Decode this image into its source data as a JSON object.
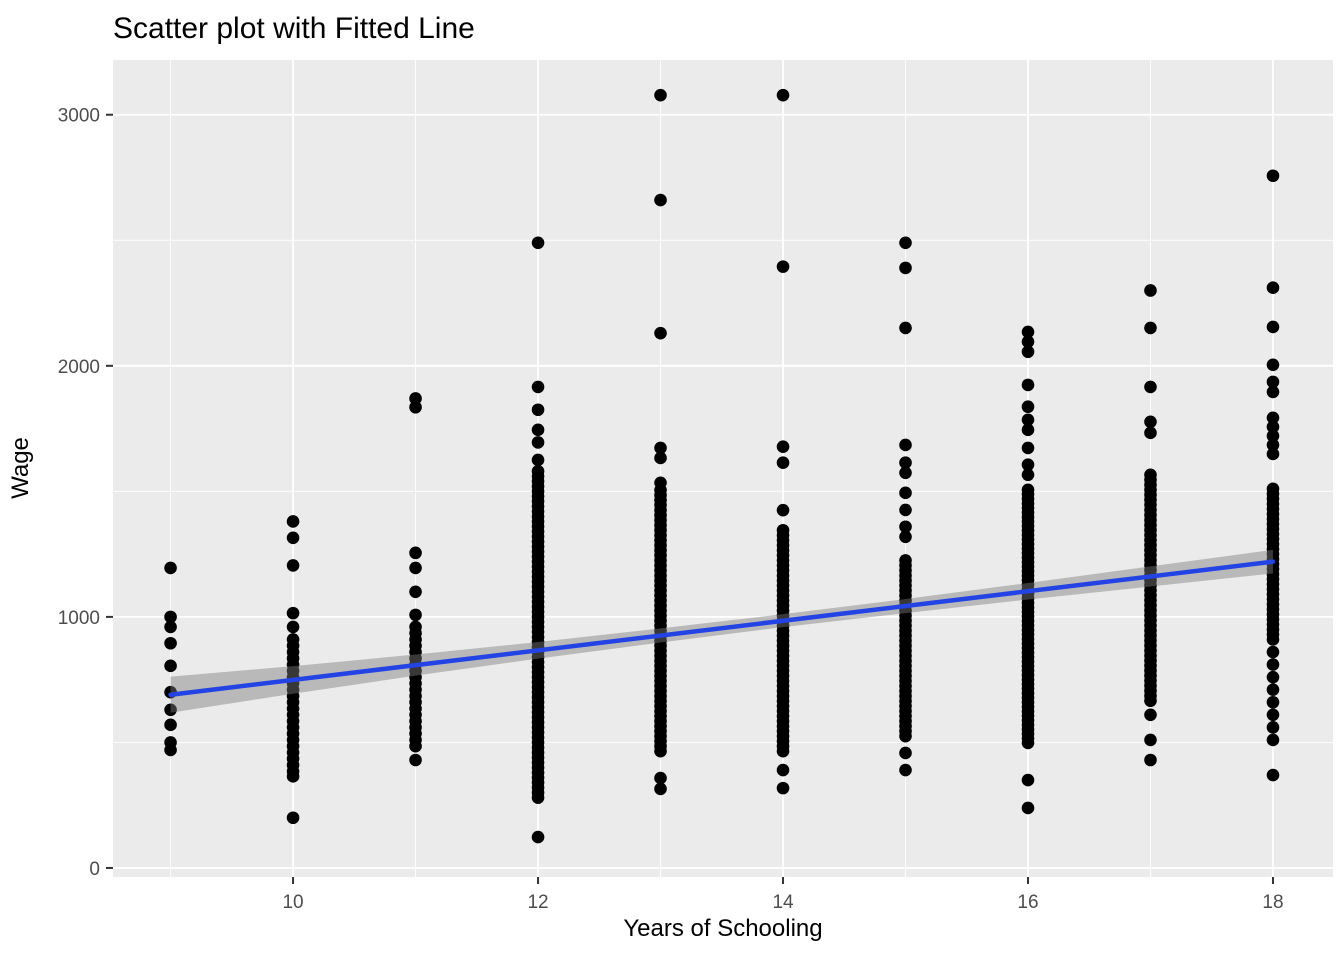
{
  "chart_data": {
    "type": "scatter",
    "title": "Scatter plot with Fitted Line",
    "xlabel": "Years of Schooling",
    "ylabel": "Wage",
    "legend": false,
    "grid": true,
    "axes": {
      "x": {
        "ticks": [
          10,
          12,
          14,
          16,
          18
        ],
        "minor_ticks": [
          9,
          11,
          13,
          15,
          17
        ],
        "domain": [
          8.53,
          18.49
        ]
      },
      "y": {
        "ticks": [
          0,
          1000,
          2000,
          3000
        ],
        "minor_ticks": [
          500,
          1500,
          2500
        ],
        "domain": [
          -36,
          3218
        ]
      }
    },
    "fitted_line": {
      "x": [
        9,
        18
      ],
      "y": [
        690,
        1220
      ]
    },
    "confidence_band": {
      "x": [
        9,
        10,
        11,
        12,
        13,
        14,
        15,
        16,
        17,
        18
      ],
      "upper": [
        762,
        804,
        850,
        900,
        954,
        1011,
        1071,
        1135,
        1201,
        1267
      ],
      "lower": [
        618,
        694,
        766,
        834,
        898,
        959,
        1015,
        1069,
        1121,
        1173
      ]
    },
    "points": [
      {
        "educ": 9,
        "wages": [
          1195,
          1000,
          960,
          895,
          805,
          700,
          630,
          570,
          500,
          470
        ]
      },
      {
        "educ": 10,
        "wages": [
          1380,
          1315,
          1205,
          1015,
          960,
          910,
          885,
          860,
          835,
          810,
          785,
          760,
          735,
          710,
          685,
          660,
          635,
          610,
          585,
          560,
          535,
          510,
          485,
          460,
          435,
          410,
          385,
          365,
          200
        ]
      },
      {
        "educ": 11,
        "wages": [
          1870,
          1835,
          1255,
          1195,
          1100,
          1008,
          960,
          935,
          910,
          885,
          860,
          835,
          810,
          785,
          760,
          735,
          710,
          685,
          660,
          635,
          610,
          585,
          560,
          535,
          510,
          485,
          430
        ]
      },
      {
        "educ": 12,
        "wages": [
          2490,
          1916,
          1825,
          1745,
          1695,
          1625,
          1580,
          1560,
          1540,
          1520,
          1500,
          1480,
          1460,
          1440,
          1420,
          1400,
          1380,
          1360,
          1340,
          1320,
          1300,
          1280,
          1260,
          1240,
          1220,
          1200,
          1180,
          1160,
          1140,
          1120,
          1100,
          1080,
          1060,
          1040,
          1020,
          1000,
          980,
          960,
          940,
          920,
          900,
          880,
          860,
          840,
          820,
          800,
          780,
          760,
          740,
          720,
          700,
          680,
          660,
          640,
          620,
          600,
          580,
          560,
          540,
          520,
          500,
          480,
          460,
          440,
          420,
          400,
          380,
          360,
          340,
          320,
          300,
          280,
          123
        ]
      },
      {
        "educ": 13,
        "wages": [
          3078,
          2660,
          2130,
          1673,
          1633,
          1534,
          1505,
          1485,
          1465,
          1445,
          1425,
          1405,
          1385,
          1365,
          1345,
          1325,
          1305,
          1285,
          1265,
          1245,
          1225,
          1205,
          1185,
          1165,
          1145,
          1125,
          1105,
          1085,
          1065,
          1045,
          1025,
          1005,
          985,
          965,
          945,
          925,
          905,
          885,
          865,
          845,
          825,
          805,
          785,
          765,
          745,
          725,
          705,
          685,
          665,
          645,
          625,
          605,
          585,
          565,
          545,
          525,
          505,
          485,
          465,
          358,
          315
        ]
      },
      {
        "educ": 14,
        "wages": [
          3078,
          2395,
          1678,
          1614,
          1425,
          1345,
          1325,
          1305,
          1285,
          1265,
          1245,
          1225,
          1205,
          1185,
          1165,
          1145,
          1125,
          1105,
          1085,
          1065,
          1045,
          1025,
          1005,
          985,
          965,
          945,
          925,
          905,
          885,
          865,
          845,
          825,
          805,
          785,
          765,
          745,
          725,
          705,
          685,
          665,
          645,
          625,
          605,
          585,
          565,
          545,
          525,
          505,
          485,
          465,
          390,
          318
        ]
      },
      {
        "educ": 15,
        "wages": [
          2490,
          2390,
          2151,
          1685,
          1614,
          1574,
          1494,
          1426,
          1359,
          1319,
          1225,
          1205,
          1185,
          1165,
          1145,
          1125,
          1105,
          1085,
          1065,
          1045,
          1025,
          1005,
          985,
          965,
          945,
          925,
          905,
          885,
          865,
          845,
          825,
          805,
          785,
          765,
          745,
          725,
          705,
          685,
          665,
          645,
          625,
          605,
          585,
          565,
          545,
          525,
          458,
          390
        ]
      },
      {
        "educ": 16,
        "wages": [
          2135,
          2096,
          2056,
          1924,
          1837,
          1785,
          1745,
          1673,
          1606,
          1566,
          1506,
          1488,
          1470,
          1452,
          1434,
          1416,
          1398,
          1380,
          1362,
          1344,
          1326,
          1308,
          1290,
          1272,
          1254,
          1236,
          1218,
          1200,
          1182,
          1164,
          1146,
          1128,
          1110,
          1092,
          1074,
          1056,
          1038,
          1020,
          1002,
          984,
          966,
          948,
          930,
          912,
          894,
          876,
          858,
          840,
          822,
          804,
          786,
          768,
          750,
          732,
          714,
          696,
          678,
          660,
          642,
          624,
          606,
          588,
          570,
          552,
          534,
          516,
          498,
          350,
          239
        ]
      },
      {
        "educ": 17,
        "wages": [
          2300,
          2151,
          1916,
          1777,
          1733,
          1566,
          1546,
          1526,
          1506,
          1486,
          1466,
          1446,
          1426,
          1406,
          1386,
          1366,
          1346,
          1326,
          1306,
          1286,
          1266,
          1246,
          1226,
          1206,
          1186,
          1166,
          1146,
          1126,
          1106,
          1086,
          1066,
          1046,
          1026,
          1006,
          986,
          966,
          946,
          926,
          906,
          886,
          866,
          846,
          826,
          806,
          786,
          766,
          746,
          726,
          706,
          686,
          666,
          610,
          510,
          430
        ]
      },
      {
        "educ": 18,
        "wages": [
          2757,
          2311,
          2155,
          2004,
          1936,
          1896,
          1793,
          1757,
          1721,
          1685,
          1649,
          1510,
          1490,
          1470,
          1450,
          1430,
          1410,
          1390,
          1370,
          1350,
          1330,
          1310,
          1290,
          1270,
          1250,
          1230,
          1210,
          1190,
          1170,
          1150,
          1130,
          1110,
          1090,
          1070,
          1050,
          1030,
          1010,
          990,
          970,
          950,
          930,
          910,
          860,
          810,
          760,
          710,
          660,
          610,
          560,
          510,
          370
        ]
      }
    ],
    "colors": {
      "background": "#FFFFFF",
      "panel": "#EBEBEB",
      "grid": "#FFFFFF",
      "point": "#000000",
      "line": "#2443E4",
      "band": "#7D7D7D",
      "band_opacity": 0.45,
      "tick_label": "#4D4D4D",
      "axis_label": "#000000",
      "tick_mark": "#333333"
    }
  }
}
